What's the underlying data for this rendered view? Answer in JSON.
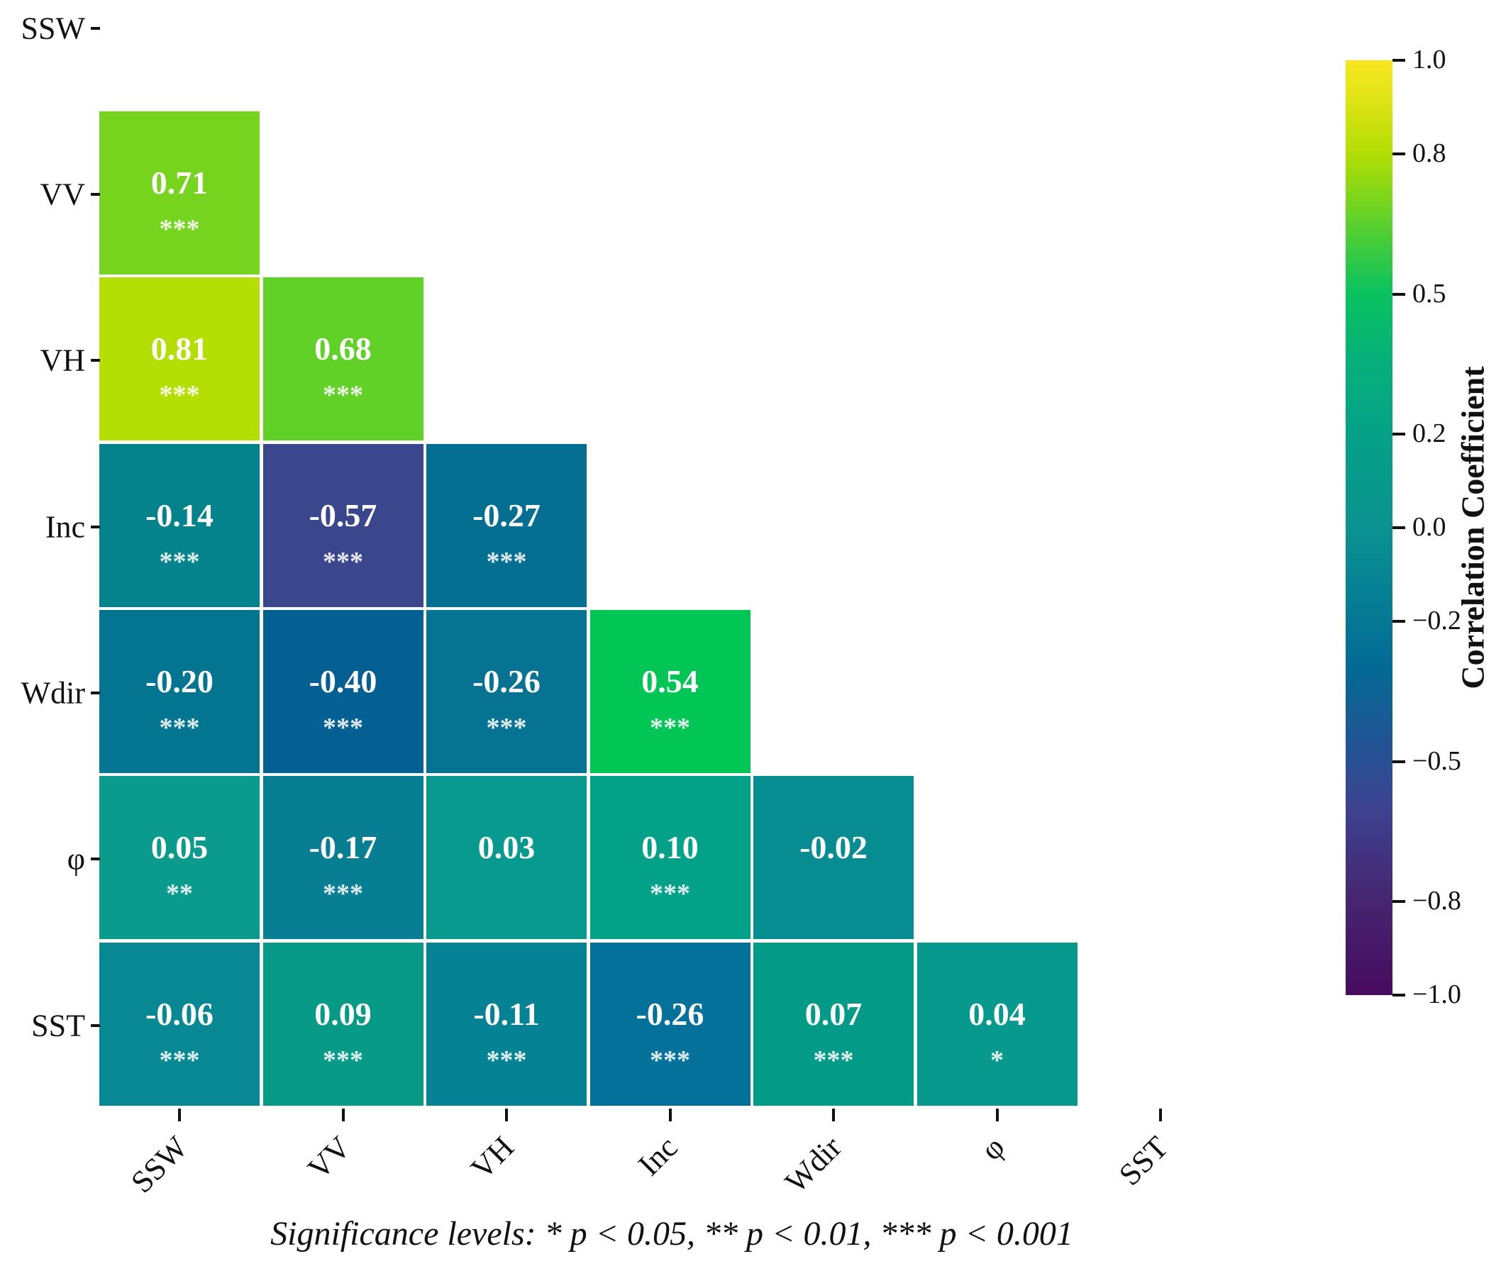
{
  "chart_data": {
    "type": "heatmap",
    "subtype": "lower-triangular-correlation-matrix",
    "variables": [
      "SSW",
      "VV",
      "VH",
      "Inc",
      "Wdir",
      "φ",
      "SST"
    ],
    "x_tick_labels": [
      "SSW",
      "VV",
      "VH",
      "Inc",
      "Wdir",
      "φ",
      "SST"
    ],
    "y_tick_labels": [
      "SSW",
      "VV",
      "VH",
      "Inc",
      "Wdir",
      "φ",
      "SST"
    ],
    "grid": false,
    "cells": [
      {
        "row": "VV",
        "col": "SSW",
        "value": "0.71",
        "significance": "***",
        "color": "#77d41e"
      },
      {
        "row": "VH",
        "col": "SSW",
        "value": "0.81",
        "significance": "***",
        "color": "#b5de04"
      },
      {
        "row": "VH",
        "col": "VV",
        "value": "0.68",
        "significance": "***",
        "color": "#61d128"
      },
      {
        "row": "Inc",
        "col": "SSW",
        "value": "-0.14",
        "significance": "***",
        "color": "#04838d"
      },
      {
        "row": "Inc",
        "col": "VV",
        "value": "-0.57",
        "significance": "***",
        "color": "#3a478d"
      },
      {
        "row": "Inc",
        "col": "VH",
        "value": "-0.27",
        "significance": "***",
        "color": "#056f92"
      },
      {
        "row": "Wdir",
        "col": "SSW",
        "value": "-0.20",
        "significance": "***",
        "color": "#047590"
      },
      {
        "row": "Wdir",
        "col": "VV",
        "value": "-0.40",
        "significance": "***",
        "color": "#045f93"
      },
      {
        "row": "Wdir",
        "col": "VH",
        "value": "-0.26",
        "significance": "***",
        "color": "#057391"
      },
      {
        "row": "Wdir",
        "col": "Inc",
        "value": "0.54",
        "significance": "***",
        "color": "#01c656"
      },
      {
        "row": "φ",
        "col": "SSW",
        "value": "0.05",
        "significance": "**",
        "color": "#0a9b8c"
      },
      {
        "row": "φ",
        "col": "VV",
        "value": "-0.17",
        "significance": "***",
        "color": "#077e92"
      },
      {
        "row": "φ",
        "col": "VH",
        "value": "0.03",
        "significance": "",
        "color": "#089a8e"
      },
      {
        "row": "φ",
        "col": "Inc",
        "value": "0.10",
        "significance": "***",
        "color": "#04a189"
      },
      {
        "row": "φ",
        "col": "Wdir",
        "value": "-0.02",
        "significance": "",
        "color": "#078c91"
      },
      {
        "row": "SST",
        "col": "SSW",
        "value": "-0.06",
        "significance": "***",
        "color": "#078892"
      },
      {
        "row": "SST",
        "col": "VV",
        "value": "0.09",
        "significance": "***",
        "color": "#079a87"
      },
      {
        "row": "SST",
        "col": "VH",
        "value": "-0.11",
        "significance": "***",
        "color": "#058293"
      },
      {
        "row": "SST",
        "col": "Inc",
        "value": "-0.26",
        "significance": "***",
        "color": "#04719b"
      },
      {
        "row": "SST",
        "col": "Wdir",
        "value": "0.07",
        "significance": "***",
        "color": "#049a88"
      },
      {
        "row": "SST",
        "col": "φ",
        "value": "0.04",
        "significance": "*",
        "color": "#07988e"
      }
    ],
    "colorbar": {
      "label": "Correlation Coefficient",
      "range": [
        -1.0,
        1.0
      ],
      "ticks": [
        1.0,
        0.8,
        0.5,
        0.2,
        0.0,
        -0.2,
        -0.5,
        -0.8,
        -1.0
      ],
      "tick_labels": [
        "1.0",
        "0.8",
        "0.5",
        "0.2",
        "0.0",
        "−0.2",
        "−0.5",
        "−0.8",
        "−1.0"
      ],
      "gradient_stops": [
        {
          "pos": 0,
          "color": "#f9e721"
        },
        {
          "pos": 5,
          "color": "#d8e312"
        },
        {
          "pos": 10,
          "color": "#b3dd05"
        },
        {
          "pos": 15,
          "color": "#79d51d"
        },
        {
          "pos": 20,
          "color": "#3ecb3e"
        },
        {
          "pos": 25,
          "color": "#0ac25f"
        },
        {
          "pos": 32,
          "color": "#06b07a"
        },
        {
          "pos": 40,
          "color": "#05a187"
        },
        {
          "pos": 50,
          "color": "#0b9290"
        },
        {
          "pos": 57,
          "color": "#068094"
        },
        {
          "pos": 65,
          "color": "#046a95"
        },
        {
          "pos": 72,
          "color": "#1d5795"
        },
        {
          "pos": 80,
          "color": "#3d4291"
        },
        {
          "pos": 90,
          "color": "#46256f"
        },
        {
          "pos": 100,
          "color": "#470b5e"
        }
      ]
    },
    "significance_note": "Significance levels: * p < 0.05, ** p < 0.01, *** p < 0.001",
    "legend_position": "right",
    "text_color_in_cells": "#ffffff"
  }
}
